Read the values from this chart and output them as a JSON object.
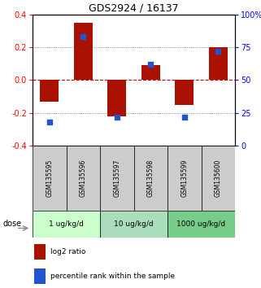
{
  "title": "GDS2924 / 16137",
  "samples": [
    "GSM135595",
    "GSM135596",
    "GSM135597",
    "GSM135598",
    "GSM135599",
    "GSM135600"
  ],
  "log2_ratio": [
    -0.13,
    0.35,
    -0.22,
    0.09,
    -0.15,
    0.2
  ],
  "percentile_rank": [
    18,
    83,
    22,
    62,
    22,
    72
  ],
  "bar_color": "#AA1100",
  "dot_color": "#2255CC",
  "ylim": [
    -0.4,
    0.4
  ],
  "yticks_left": [
    -0.4,
    -0.2,
    0.0,
    0.2,
    0.4
  ],
  "yticks_right": [
    0,
    25,
    50,
    75,
    100
  ],
  "dose_groups": [
    {
      "label": "1 ug/kg/d",
      "samples": [
        0,
        1
      ]
    },
    {
      "label": "10 ug/kg/d",
      "samples": [
        2,
        3
      ]
    },
    {
      "label": "1000 ug/kg/d",
      "samples": [
        4,
        5
      ]
    }
  ],
  "dose_label": "dose",
  "legend_log2": "log2 ratio",
  "legend_pct": "percentile rank within the sample",
  "background_dose_colors": [
    "#ccffcc",
    "#aaddbb",
    "#77cc88"
  ],
  "sample_bg": "#cccccc",
  "zero_line_color": "#cc0000",
  "grid_color": "#666666"
}
